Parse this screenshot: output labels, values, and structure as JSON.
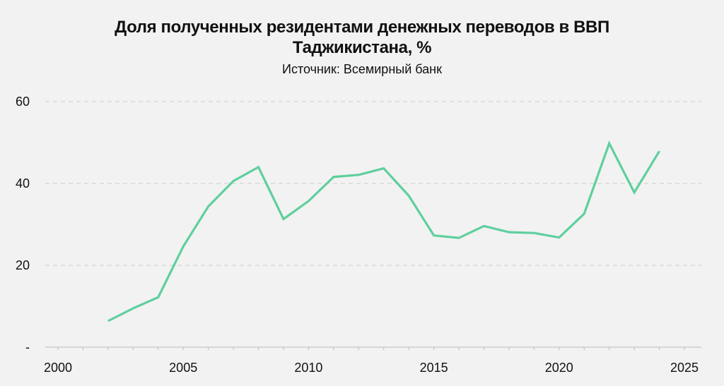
{
  "header": {
    "title_line1": "Доля полученных резидентами денежных переводов в ВВП",
    "title_line2": "Таджикистана, %",
    "subtitle": "Источник: Всемирный банк"
  },
  "colors": {
    "line": "#5fcf9d",
    "grid": "#cccccc",
    "axis": "#bbbbbb",
    "background": "#f2f2f2"
  },
  "chart_data": {
    "type": "line",
    "title": "Доля полученных резидентами денежных переводов в ВВП Таджикистана, %",
    "subtitle": "Источник: Всемирный банк",
    "xlabel": "",
    "ylabel": "",
    "xlim": [
      2000,
      2025
    ],
    "ylim": [
      0,
      60
    ],
    "x_ticks": [
      2000,
      2005,
      2010,
      2015,
      2020,
      2025
    ],
    "y_ticks": [
      0,
      20,
      40,
      60
    ],
    "y_tick_labels": [
      "-",
      "20",
      "40",
      "60"
    ],
    "grid": "horizontal dashed",
    "series": [
      {
        "x": [
          2002,
          2003,
          2004,
          2005,
          2006,
          2007,
          2008,
          2009,
          2010,
          2011,
          2012,
          2013,
          2014,
          2015,
          2016,
          2017,
          2018,
          2019,
          2020,
          2021,
          2022,
          2023,
          2024
        ],
        "values": [
          6.4,
          9.5,
          12.2,
          24.6,
          34.4,
          40.6,
          44.0,
          31.3,
          35.7,
          41.6,
          42.1,
          43.7,
          37.0,
          27.3,
          26.7,
          29.6,
          28.1,
          27.9,
          26.8,
          32.6,
          49.8,
          37.8,
          47.9
        ]
      }
    ]
  }
}
